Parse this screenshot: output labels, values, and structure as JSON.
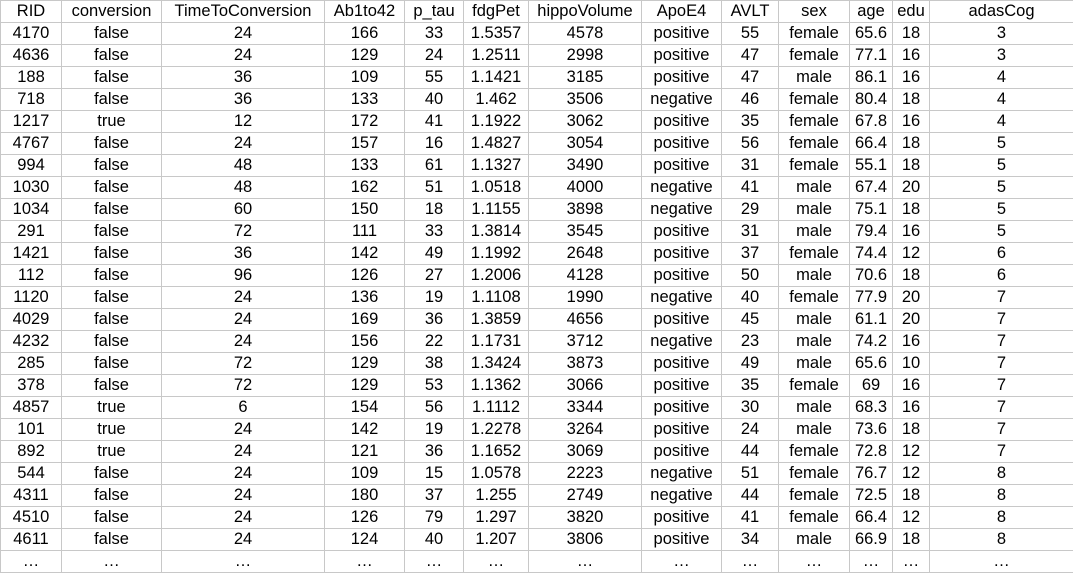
{
  "table": {
    "headers": [
      "RID",
      "conversion",
      "TimeToConversion",
      "Ab1to42",
      "p_tau",
      "fdgPet",
      "hippoVolume",
      "ApoE4",
      "AVLT",
      "sex",
      "age",
      "edu",
      "adasCog"
    ],
    "rows": [
      [
        "4170",
        "false",
        "24",
        "166",
        "33",
        "1.5357",
        "4578",
        "positive",
        "55",
        "female",
        "65.6",
        "18",
        "3"
      ],
      [
        "4636",
        "false",
        "24",
        "129",
        "24",
        "1.2511",
        "2998",
        "positive",
        "47",
        "female",
        "77.1",
        "16",
        "3"
      ],
      [
        "188",
        "false",
        "36",
        "109",
        "55",
        "1.1421",
        "3185",
        "positive",
        "47",
        "male",
        "86.1",
        "16",
        "4"
      ],
      [
        "718",
        "false",
        "36",
        "133",
        "40",
        "1.462",
        "3506",
        "negative",
        "46",
        "female",
        "80.4",
        "18",
        "4"
      ],
      [
        "1217",
        "true",
        "12",
        "172",
        "41",
        "1.1922",
        "3062",
        "positive",
        "35",
        "female",
        "67.8",
        "16",
        "4"
      ],
      [
        "4767",
        "false",
        "24",
        "157",
        "16",
        "1.4827",
        "3054",
        "positive",
        "56",
        "female",
        "66.4",
        "18",
        "5"
      ],
      [
        "994",
        "false",
        "48",
        "133",
        "61",
        "1.1327",
        "3490",
        "positive",
        "31",
        "female",
        "55.1",
        "18",
        "5"
      ],
      [
        "1030",
        "false",
        "48",
        "162",
        "51",
        "1.0518",
        "4000",
        "negative",
        "41",
        "male",
        "67.4",
        "20",
        "5"
      ],
      [
        "1034",
        "false",
        "60",
        "150",
        "18",
        "1.1155",
        "3898",
        "negative",
        "29",
        "male",
        "75.1",
        "18",
        "5"
      ],
      [
        "291",
        "false",
        "72",
        "111",
        "33",
        "1.3814",
        "3545",
        "positive",
        "31",
        "male",
        "79.4",
        "16",
        "5"
      ],
      [
        "1421",
        "false",
        "36",
        "142",
        "49",
        "1.1992",
        "2648",
        "positive",
        "37",
        "female",
        "74.4",
        "12",
        "6"
      ],
      [
        "112",
        "false",
        "96",
        "126",
        "27",
        "1.2006",
        "4128",
        "positive",
        "50",
        "male",
        "70.6",
        "18",
        "6"
      ],
      [
        "1120",
        "false",
        "24",
        "136",
        "19",
        "1.1108",
        "1990",
        "negative",
        "40",
        "female",
        "77.9",
        "20",
        "7"
      ],
      [
        "4029",
        "false",
        "24",
        "169",
        "36",
        "1.3859",
        "4656",
        "positive",
        "45",
        "male",
        "61.1",
        "20",
        "7"
      ],
      [
        "4232",
        "false",
        "24",
        "156",
        "22",
        "1.1731",
        "3712",
        "negative",
        "23",
        "male",
        "74.2",
        "16",
        "7"
      ],
      [
        "285",
        "false",
        "72",
        "129",
        "38",
        "1.3424",
        "3873",
        "positive",
        "49",
        "male",
        "65.6",
        "10",
        "7"
      ],
      [
        "378",
        "false",
        "72",
        "129",
        "53",
        "1.1362",
        "3066",
        "positive",
        "35",
        "female",
        "69",
        "16",
        "7"
      ],
      [
        "4857",
        "true",
        "6",
        "154",
        "56",
        "1.1112",
        "3344",
        "positive",
        "30",
        "male",
        "68.3",
        "16",
        "7"
      ],
      [
        "101",
        "true",
        "24",
        "142",
        "19",
        "1.2278",
        "3264",
        "positive",
        "24",
        "male",
        "73.6",
        "18",
        "7"
      ],
      [
        "892",
        "true",
        "24",
        "121",
        "36",
        "1.1652",
        "3069",
        "positive",
        "44",
        "female",
        "72.8",
        "12",
        "7"
      ],
      [
        "544",
        "false",
        "24",
        "109",
        "15",
        "1.0578",
        "2223",
        "negative",
        "51",
        "female",
        "76.7",
        "12",
        "8"
      ],
      [
        "4311",
        "false",
        "24",
        "180",
        "37",
        "1.255",
        "2749",
        "negative",
        "44",
        "female",
        "72.5",
        "18",
        "8"
      ],
      [
        "4510",
        "false",
        "24",
        "126",
        "79",
        "1.297",
        "3820",
        "positive",
        "41",
        "female",
        "66.4",
        "12",
        "8"
      ],
      [
        "4611",
        "false",
        "24",
        "124",
        "40",
        "1.207",
        "3806",
        "positive",
        "34",
        "male",
        "66.9",
        "18",
        "8"
      ],
      [
        "…",
        "…",
        "…",
        "…",
        "…",
        "…",
        "…",
        "…",
        "…",
        "…",
        "…",
        "…",
        "…"
      ]
    ]
  }
}
